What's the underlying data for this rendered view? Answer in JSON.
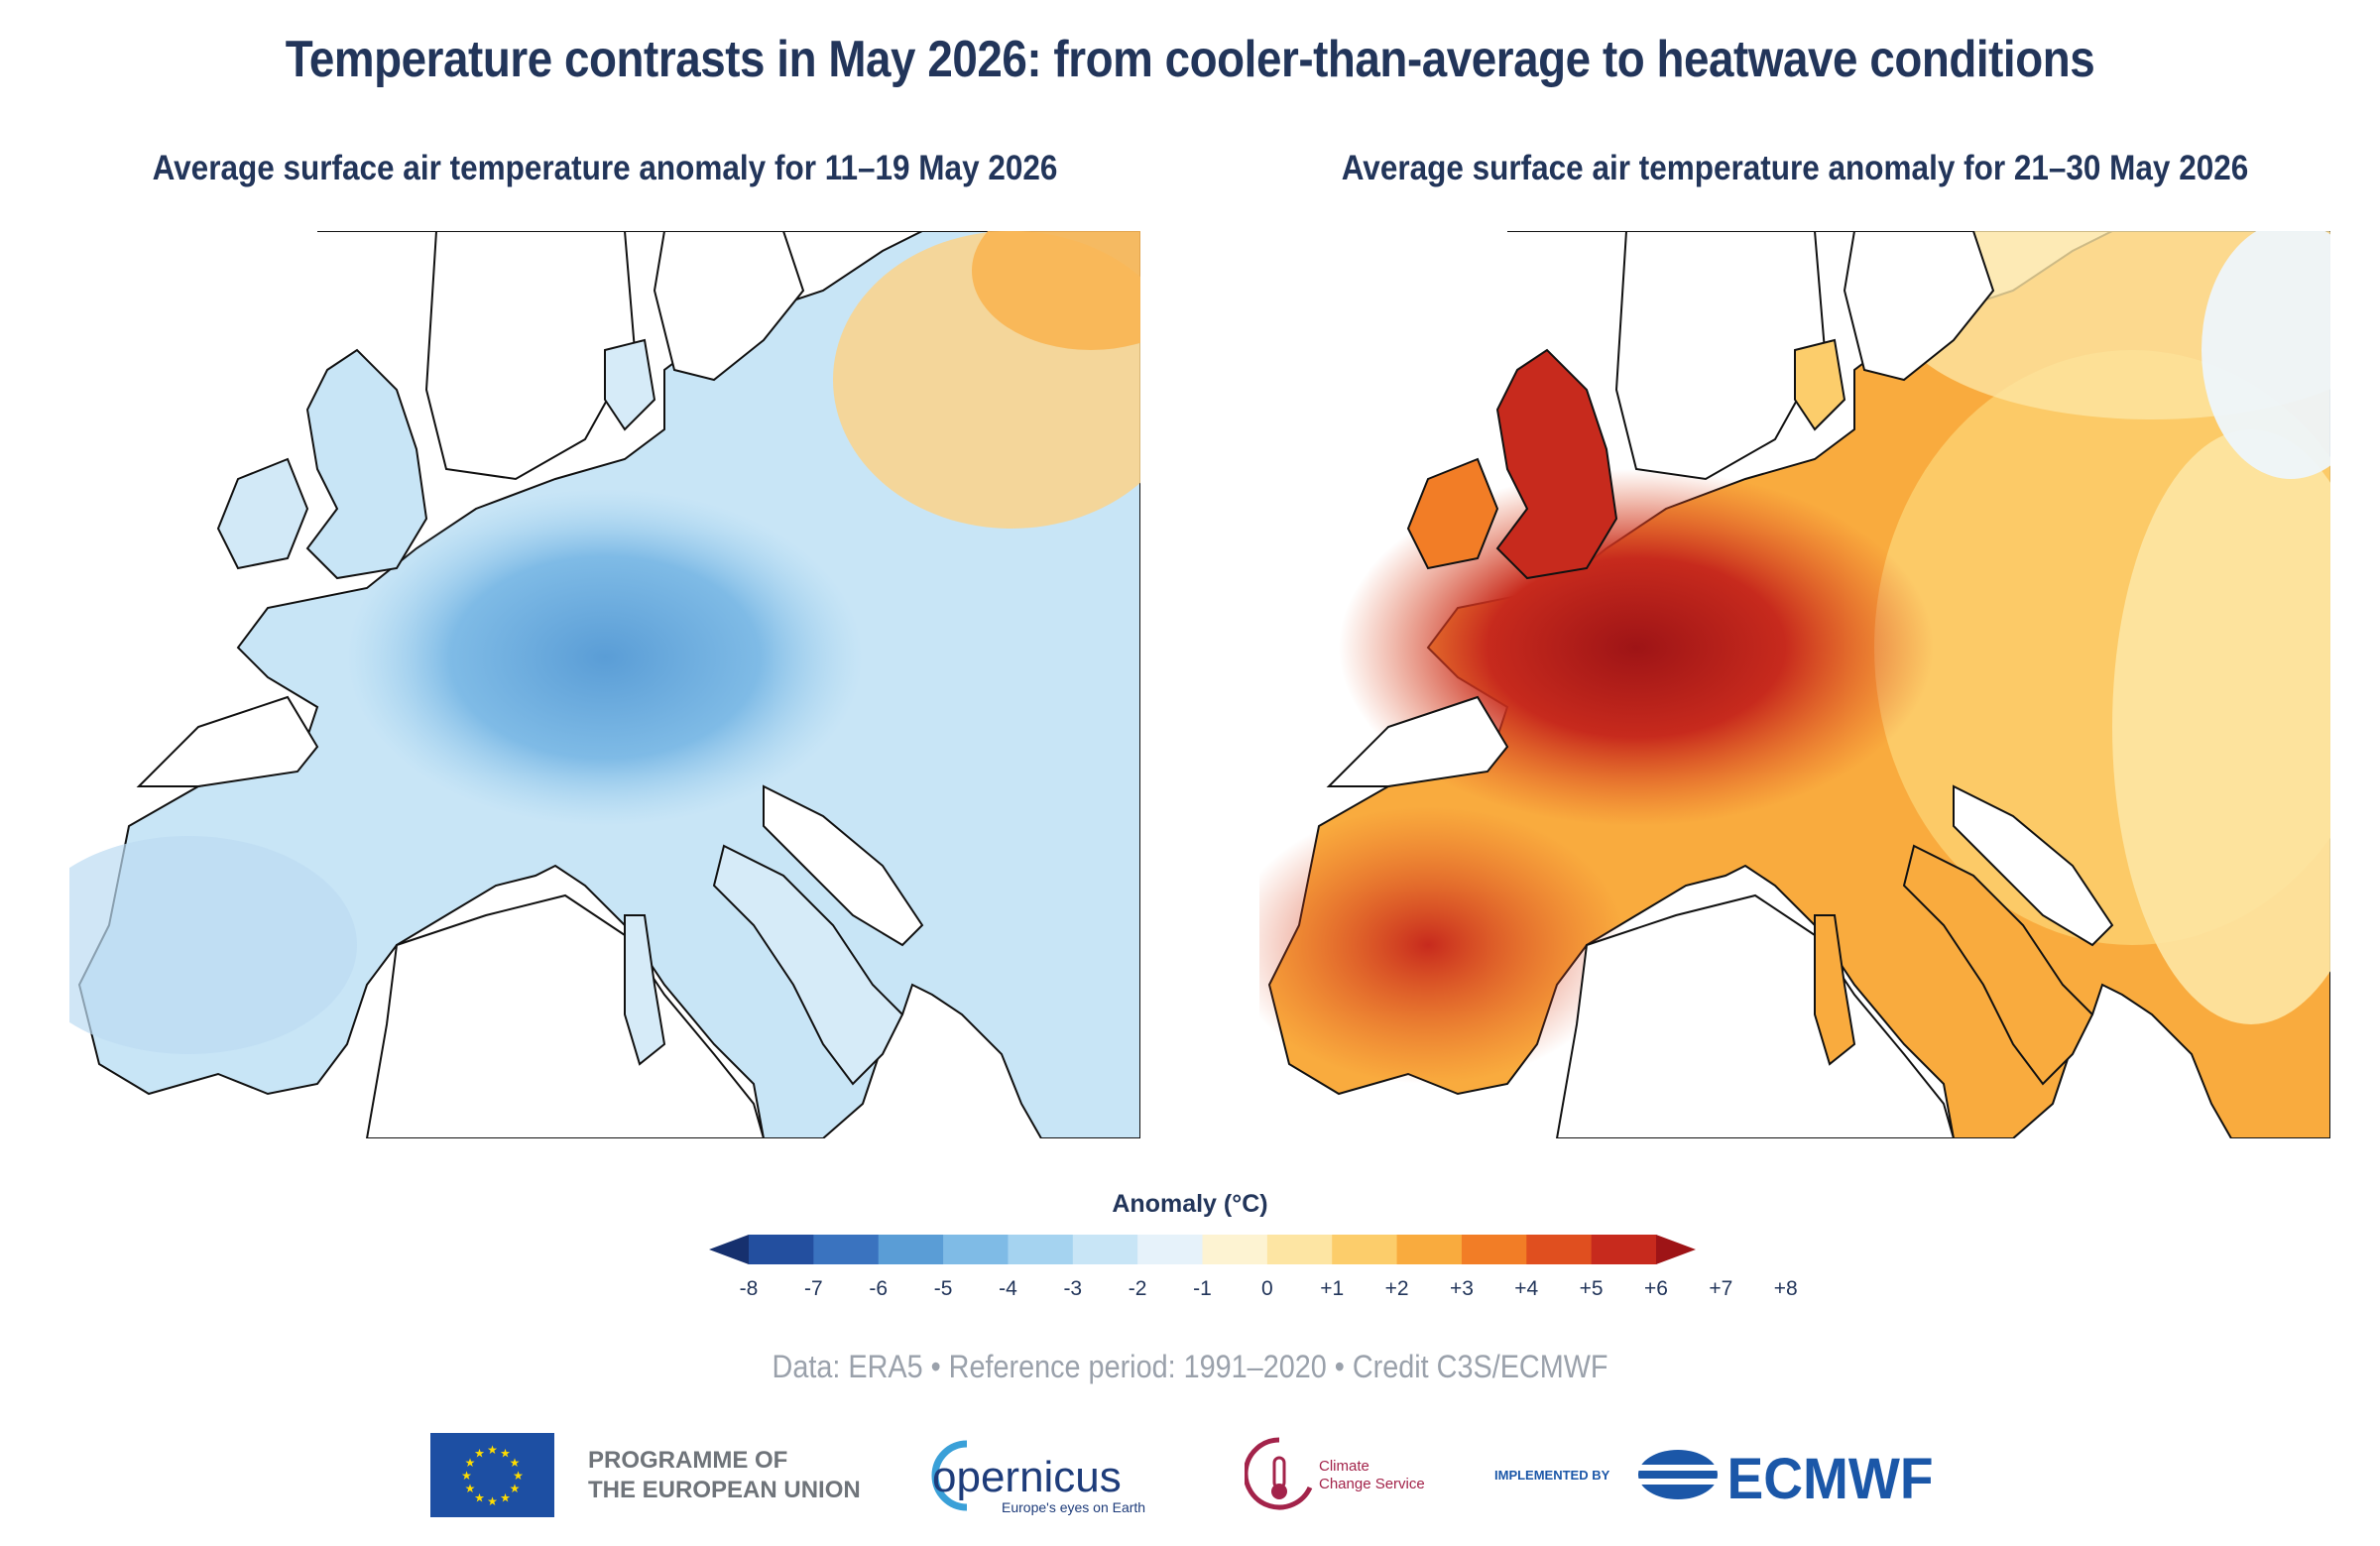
{
  "title": "Temperature contrasts in May 2026: from cooler-than-average to heatwave conditions",
  "panels": [
    {
      "title": "Average surface air temperature anomaly for 11–19 May 2026",
      "style": "cool"
    },
    {
      "title": "Average surface air temperature anomaly for 21–30 May 2026",
      "style": "warm"
    }
  ],
  "colorbar": {
    "label": "Anomaly (°C)",
    "ticks": [
      "-8",
      "-7",
      "-6",
      "-5",
      "-4",
      "-3",
      "-2",
      "-1",
      "0",
      "+1",
      "+2",
      "+3",
      "+4",
      "+5",
      "+6",
      "+7",
      "+8"
    ],
    "colors": [
      "#16306e",
      "#234f9f",
      "#3a73bf",
      "#5a9dd6",
      "#7fbbe6",
      "#a5d3f0",
      "#c8e5f6",
      "#e6f2fa",
      "#fdf3d2",
      "#fde5a3",
      "#fccd6b",
      "#f9ab3e",
      "#f27d26",
      "#e04f1f",
      "#c72a1d",
      "#9e1416"
    ]
  },
  "credit": "Data: ERA5 • Reference period: 1991–2020 • Credit C3S/ECMWF",
  "logos": {
    "eu_line1": "PROGRAMME OF",
    "eu_line2": "THE EUROPEAN UNION",
    "copernicus": "opernicus",
    "copernicus_tagline": "Europe's eyes on Earth",
    "c3s_line1": "Climate",
    "c3s_line2": "Change Service",
    "implemented_by": "IMPLEMENTED BY",
    "ecmwf": "ECMWF"
  }
}
